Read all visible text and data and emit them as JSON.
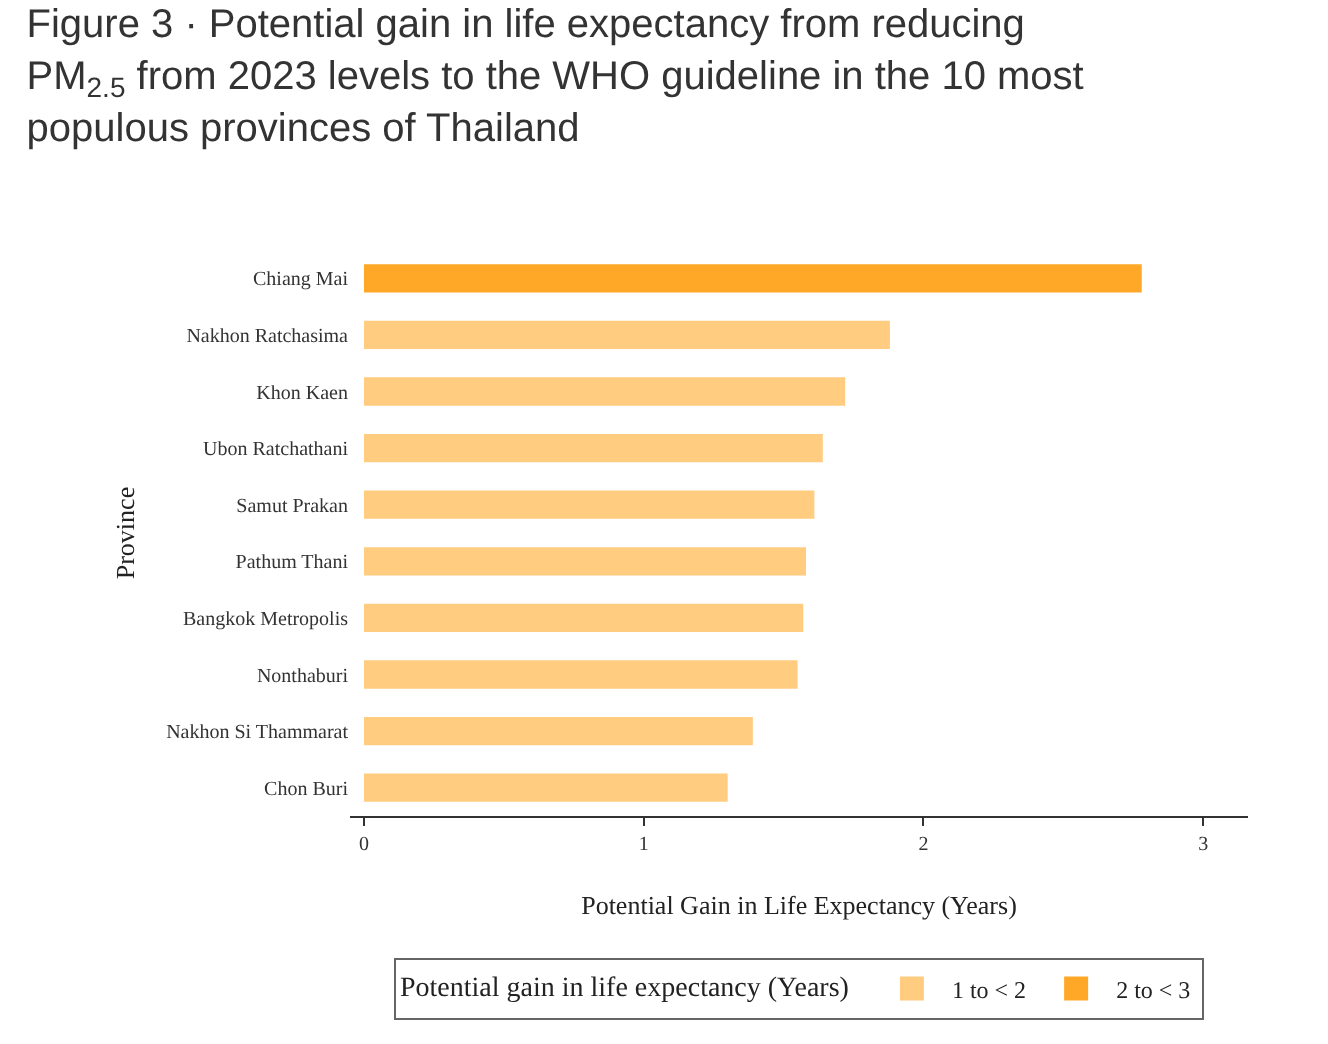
{
  "chart_data": {
    "type": "bar",
    "orientation": "horizontal",
    "title": "Figure 3 · Potential gain in life expectancy from reducing PM$_{2.5}$ from 2023 levels to the WHO guideline in the 10 most populous provinces of Thailand",
    "xlabel": "Potential Gain in Life Expectancy (Years)",
    "ylabel": "Province",
    "legend_title": "Potential gain in life expectancy (Years)",
    "categories": [
      "Chiang Mai",
      "Nakhon Ratchasima",
      "Khon Kaen",
      "Ubon Ratchathani",
      "Samut Prakan",
      "Pathum Thani",
      "Bangkok Metropolis",
      "Nonthaburi",
      "Nakhon Si Thammarat",
      "Chon Buri"
    ],
    "series": [
      {
        "name": "1 to < 2",
        "color": "#ffcc80",
        "values": [
          null,
          1.88,
          1.72,
          1.64,
          1.61,
          1.58,
          1.57,
          1.55,
          1.39,
          1.3
        ]
      },
      {
        "name": "2 to < 3",
        "color": "#ffa726",
        "values": [
          2.78,
          null,
          null,
          null,
          null,
          null,
          null,
          null,
          null,
          null
        ]
      }
    ],
    "xlim": [
      -0.05,
      3.16
    ],
    "xticks": [
      0,
      1,
      2,
      3
    ],
    "grid": false,
    "legend": "bottom"
  }
}
